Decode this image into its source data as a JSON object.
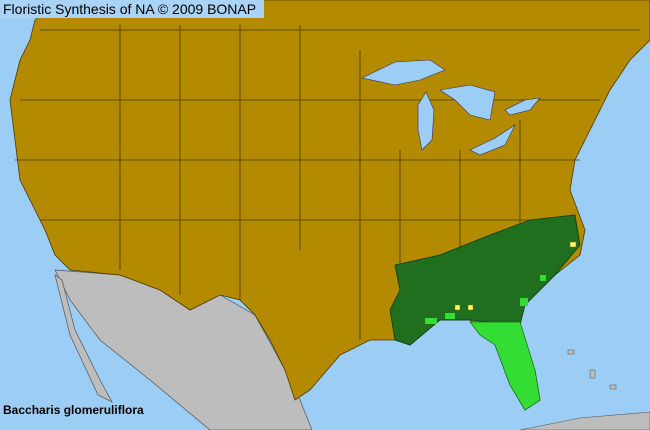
{
  "title": "Floristic Synthesis of NA © 2009 BONAP",
  "species": "Baccharis glomeruliflora",
  "colors": {
    "ocean": "#9ccdf5",
    "not_present_region": "#b38a00",
    "present_in_state": "#1f6f1f",
    "present_in_county": "#33dd33",
    "rare_or_extirpated": "#ffff66",
    "outside_region": "#bdbdbd"
  }
}
